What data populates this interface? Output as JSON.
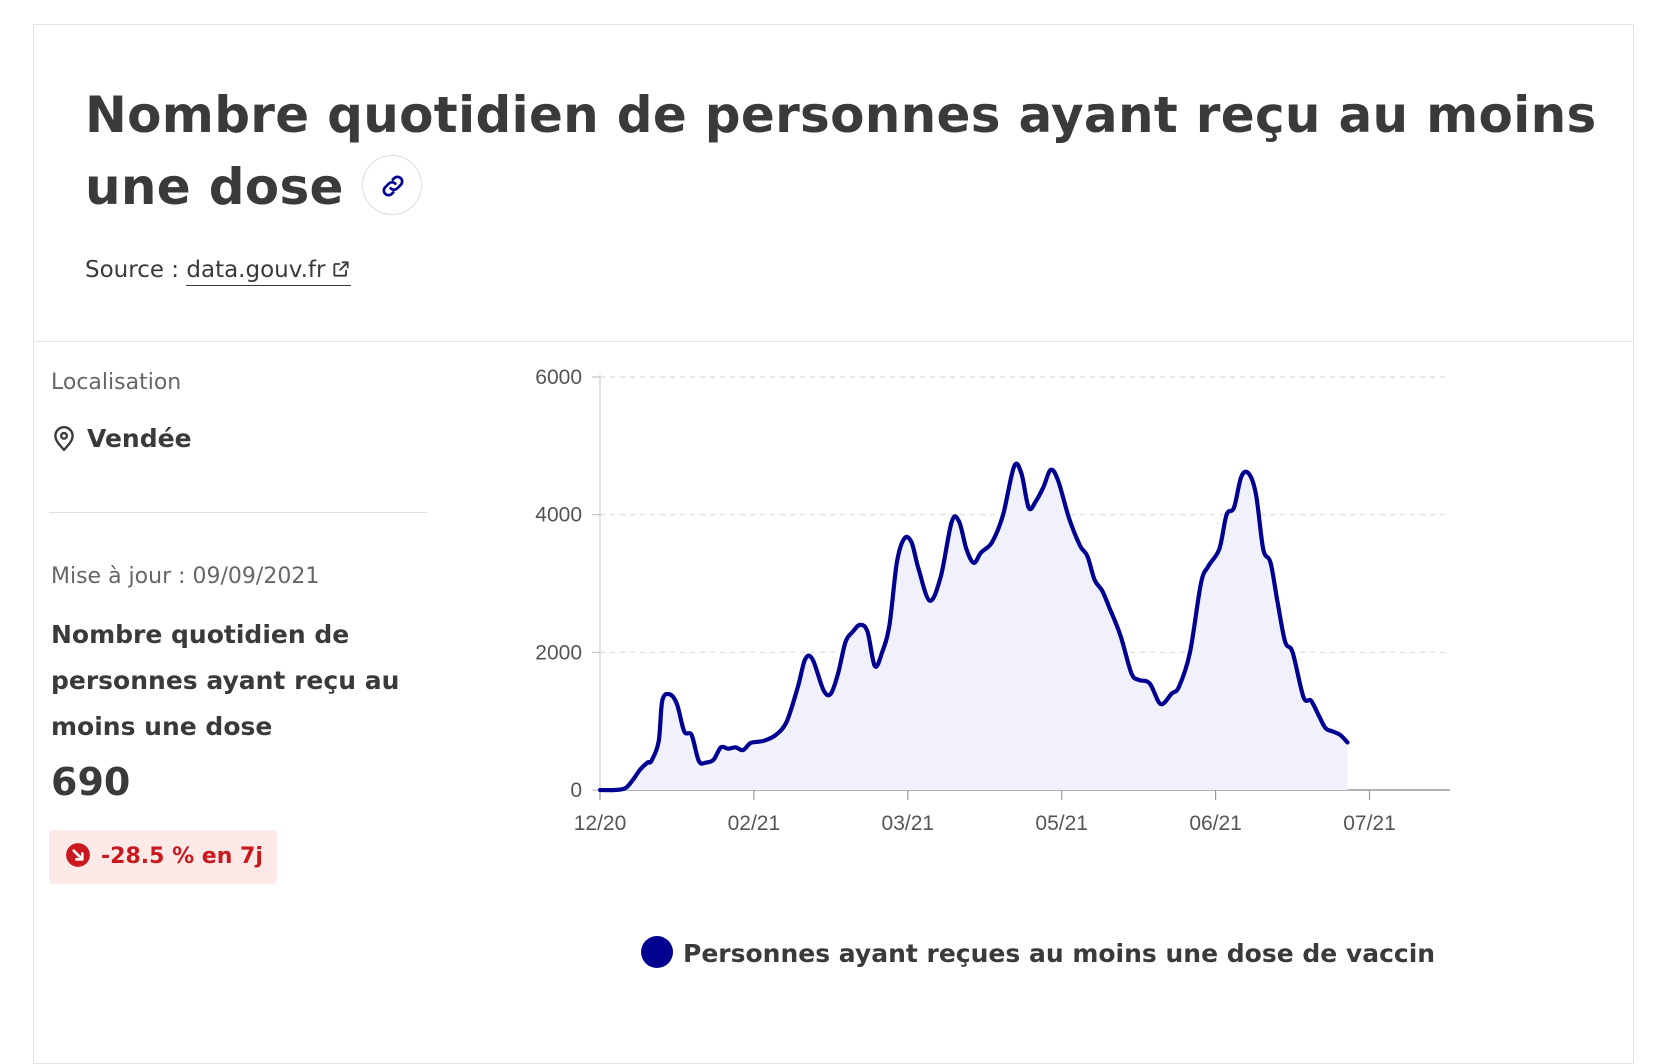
{
  "header": {
    "title": "Nombre quotidien de personnes ayant reçu au moins une dose",
    "source_label": "Source :",
    "source_link": "data.gouv.fr",
    "link_icon": "link-icon",
    "external_icon": "external-link-icon"
  },
  "side": {
    "location_label": "Localisation",
    "location_icon": "map-pin-icon",
    "location_value": "Vendée",
    "update_text": "Mise à jour : 09/09/2021",
    "indicator_name": "Nombre quotidien de personnes ayant reçu au moins une dose",
    "value": "690",
    "trend_icon": "arrow-down-right-icon",
    "trend_text": "-28.5 % en 7j"
  },
  "colors": {
    "series": "#000091",
    "fill": "#f1f1fc",
    "trend": "#c9191e",
    "trend_bg": "#fde9e8"
  },
  "chart_data": {
    "type": "area",
    "x_tick_labels": [
      "12/20",
      "02/21",
      "03/21",
      "05/21",
      "06/21",
      "07/21"
    ],
    "x_tick_dates": [
      "2020-12-27",
      "2021-02-07",
      "2021-03-21",
      "2021-05-02",
      "2021-06-13",
      "2021-07-25"
    ],
    "ylim": [
      0,
      6000
    ],
    "y_ticks": [
      0,
      2000,
      4000,
      6000
    ],
    "grid": "horizontal-dashed",
    "legend_placement": "bottom",
    "series": [
      {
        "name": "Personnes ayant reçues au moins une dose de vaccin",
        "points": [
          [
            "2020-12-27",
            0
          ],
          [
            "2020-12-31",
            0
          ],
          [
            "2021-01-03",
            30
          ],
          [
            "2021-01-05",
            150
          ],
          [
            "2021-01-07",
            300
          ],
          [
            "2021-01-09",
            400
          ],
          [
            "2021-01-10",
            420
          ],
          [
            "2021-01-12",
            700
          ],
          [
            "2021-01-13",
            1300
          ],
          [
            "2021-01-15",
            1390
          ],
          [
            "2021-01-17",
            1250
          ],
          [
            "2021-01-19",
            850
          ],
          [
            "2021-01-21",
            800
          ],
          [
            "2021-01-23",
            420
          ],
          [
            "2021-01-25",
            400
          ],
          [
            "2021-01-27",
            440
          ],
          [
            "2021-01-29",
            620
          ],
          [
            "2021-01-31",
            600
          ],
          [
            "2021-02-02",
            620
          ],
          [
            "2021-02-04",
            580
          ],
          [
            "2021-02-06",
            680
          ],
          [
            "2021-02-08",
            700
          ],
          [
            "2021-02-10",
            720
          ],
          [
            "2021-02-13",
            800
          ],
          [
            "2021-02-16",
            1000
          ],
          [
            "2021-02-19",
            1500
          ],
          [
            "2021-02-21",
            1900
          ],
          [
            "2021-02-23",
            1900
          ],
          [
            "2021-02-26",
            1450
          ],
          [
            "2021-02-28",
            1400
          ],
          [
            "2021-03-02",
            1700
          ],
          [
            "2021-03-04",
            2150
          ],
          [
            "2021-03-06",
            2300
          ],
          [
            "2021-03-08",
            2400
          ],
          [
            "2021-03-10",
            2300
          ],
          [
            "2021-03-12",
            1800
          ],
          [
            "2021-03-14",
            2000
          ],
          [
            "2021-03-16",
            2400
          ],
          [
            "2021-03-18",
            3300
          ],
          [
            "2021-03-20",
            3650
          ],
          [
            "2021-03-22",
            3600
          ],
          [
            "2021-03-24",
            3200
          ],
          [
            "2021-03-27",
            2750
          ],
          [
            "2021-03-30",
            3100
          ],
          [
            "2021-04-02",
            3900
          ],
          [
            "2021-04-04",
            3900
          ],
          [
            "2021-04-06",
            3500
          ],
          [
            "2021-04-08",
            3300
          ],
          [
            "2021-04-10",
            3450
          ],
          [
            "2021-04-13",
            3600
          ],
          [
            "2021-04-16",
            4000
          ],
          [
            "2021-04-19",
            4700
          ],
          [
            "2021-04-21",
            4600
          ],
          [
            "2021-04-23",
            4100
          ],
          [
            "2021-04-25",
            4200
          ],
          [
            "2021-04-27",
            4400
          ],
          [
            "2021-04-29",
            4650
          ],
          [
            "2021-05-01",
            4500
          ],
          [
            "2021-05-04",
            3950
          ],
          [
            "2021-05-07",
            3550
          ],
          [
            "2021-05-09",
            3400
          ],
          [
            "2021-05-11",
            3050
          ],
          [
            "2021-05-13",
            2900
          ],
          [
            "2021-05-15",
            2650
          ],
          [
            "2021-05-18",
            2250
          ],
          [
            "2021-05-21",
            1700
          ],
          [
            "2021-05-23",
            1600
          ],
          [
            "2021-05-26",
            1550
          ],
          [
            "2021-05-29",
            1250
          ],
          [
            "2021-06-01",
            1400
          ],
          [
            "2021-06-03",
            1500
          ],
          [
            "2021-06-06",
            2000
          ],
          [
            "2021-06-09",
            3000
          ],
          [
            "2021-06-11",
            3250
          ],
          [
            "2021-06-14",
            3500
          ],
          [
            "2021-06-16",
            4000
          ],
          [
            "2021-06-18",
            4100
          ],
          [
            "2021-06-20",
            4550
          ],
          [
            "2021-06-22",
            4600
          ],
          [
            "2021-06-24",
            4300
          ],
          [
            "2021-06-26",
            3500
          ],
          [
            "2021-06-28",
            3300
          ],
          [
            "2021-06-30",
            2700
          ],
          [
            "2021-07-02",
            2150
          ],
          [
            "2021-07-04",
            2000
          ],
          [
            "2021-07-07",
            1350
          ],
          [
            "2021-07-09",
            1300
          ],
          [
            "2021-07-11",
            1100
          ],
          [
            "2021-07-13",
            900
          ],
          [
            "2021-07-15",
            850
          ],
          [
            "2021-07-17",
            800
          ],
          [
            "2021-07-19",
            690
          ]
        ]
      }
    ]
  }
}
